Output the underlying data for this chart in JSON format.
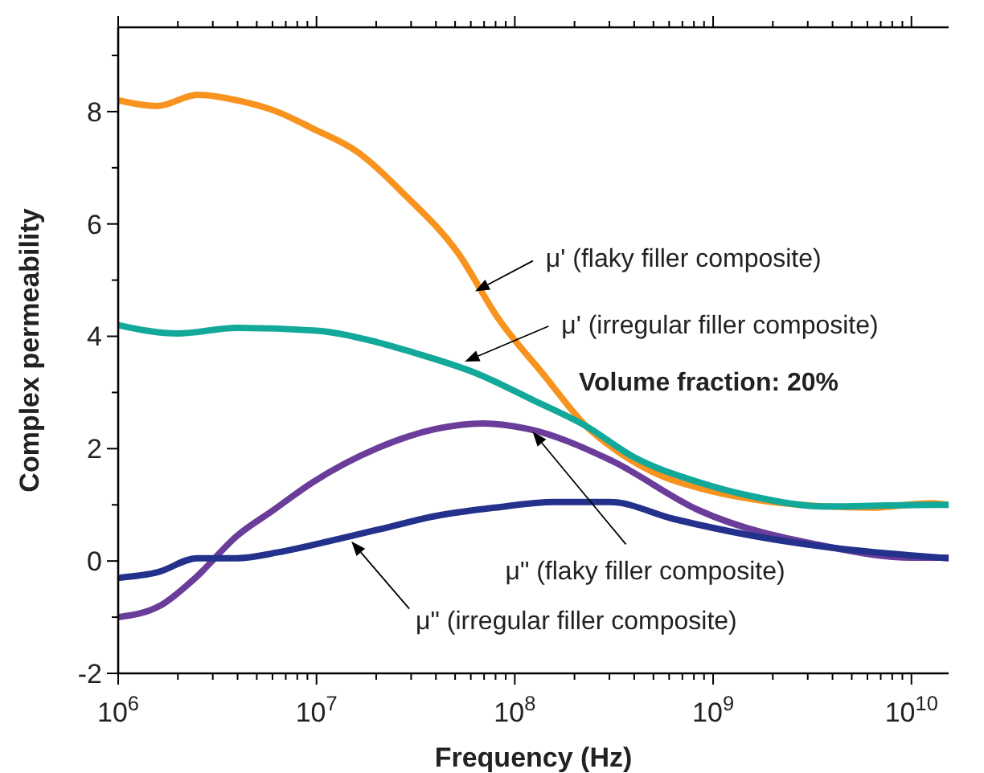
{
  "chart_data": {
    "type": "line",
    "xlabel": "Frequency (Hz)",
    "ylabel": "Complex permeability",
    "log": "x",
    "grid": false,
    "marker": "none",
    "line_style": "solid",
    "xlim": [
      1000000,
      15400000000
    ],
    "ylim": [
      -2,
      9.5
    ],
    "xticks": [
      {
        "value": 1000000,
        "label": "10$^{6}$"
      },
      {
        "value": 10000000,
        "label": "10$^{7}$"
      },
      {
        "value": 100000000,
        "label": "10$^{8}$"
      },
      {
        "value": 1000000000,
        "label": "10$^{9}$"
      },
      {
        "value": 10000000000,
        "label": "10$^{10}$"
      }
    ],
    "yticks": [
      -2,
      {
        "value": -1,
        "label": null
      },
      0,
      {
        "value": 1,
        "label": null
      },
      2,
      {
        "value": 3,
        "label": null
      },
      4,
      {
        "value": 5,
        "label": null
      },
      6,
      {
        "value": 7,
        "label": null
      },
      8,
      {
        "value": 9,
        "label": null
      }
    ],
    "series": [
      {
        "color": "#f7931e",
        "x": [
          1000000,
          1580000,
          2510000,
          3980000,
          6310000,
          9550000,
          15800000,
          28200000,
          51300000,
          83200000,
          141000000,
          229000000,
          347000000,
          562000000,
          851000000,
          1580000000,
          3720000000,
          6310000000,
          12600000000,
          15400000000
        ],
        "values": [
          8.2,
          8.1,
          8.3,
          8.2,
          8.0,
          7.7,
          7.3,
          6.5,
          5.5,
          4.3,
          3.3,
          2.4,
          1.9,
          1.5,
          1.3,
          1.1,
          0.97,
          0.95,
          1.03,
          1.0
        ]
      },
      {
        "color": "#12a89a",
        "x": [
          1000000,
          2000000,
          3980000,
          10000000,
          20000000,
          31600000,
          63100000,
          126000000,
          229000000,
          398000000,
          851000000,
          1580000000,
          3720000000,
          12600000000,
          15400000000
        ],
        "values": [
          4.2,
          4.05,
          4.15,
          4.1,
          3.9,
          3.7,
          3.35,
          2.85,
          2.4,
          1.85,
          1.4,
          1.15,
          0.97,
          1.0,
          1.0
        ]
      },
      {
        "color": "#6a3d9a",
        "x": [
          1000000,
          1620000,
          2450000,
          3980000,
          6030000,
          9550000,
          20000000,
          39800000,
          69200000,
          117000000,
          302000000,
          851000000,
          3720000000,
          10000000000,
          15400000000
        ],
        "values": [
          -1.0,
          -0.8,
          -0.3,
          0.45,
          0.9,
          1.4,
          2.0,
          2.35,
          2.45,
          2.35,
          1.8,
          0.9,
          0.26,
          0.06,
          0.06
        ]
      },
      {
        "color": "#23318c",
        "x": [
          1000000,
          1580000,
          2510000,
          3980000,
          6310000,
          10000000,
          20000000,
          39800000,
          79400000,
          158000000,
          302000000,
          631000000,
          1580000000,
          3720000000,
          10000000000,
          15400000000
        ],
        "values": [
          -0.3,
          -0.2,
          0.05,
          0.05,
          0.15,
          0.3,
          0.55,
          0.8,
          0.95,
          1.05,
          1.05,
          0.75,
          0.45,
          0.25,
          0.1,
          0.05
        ]
      }
    ],
    "annotations": [
      {
        "text": "μ' (flaky filler composite)",
        "x": 63000000,
        "y": 4.8
      },
      {
        "text": "μ' (irregular filler composite)",
        "x": 56000000,
        "y": 3.55
      },
      "Volume fraction: 20%",
      {
        "text": "μ\" (flaky filler composite)",
        "x": 123000000,
        "y": 2.3
      },
      {
        "text": "μ\" (irregular filler composite)",
        "x": 15000000,
        "y": 0.35
      }
    ]
  }
}
